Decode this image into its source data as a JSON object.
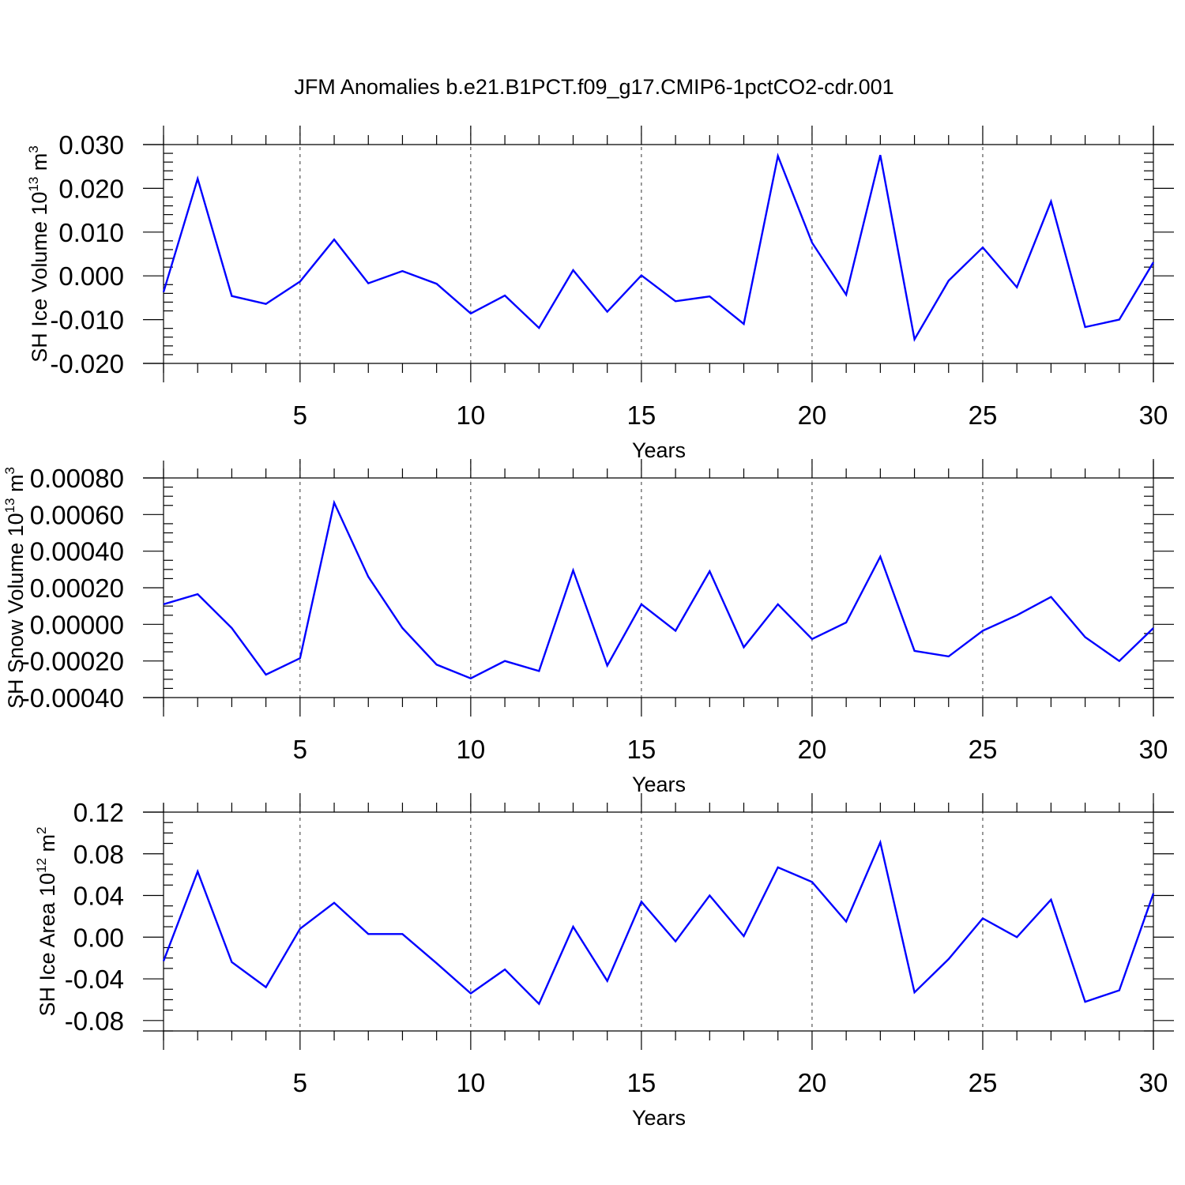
{
  "figure_title": "JFM Anomalies b.e21.B1PCT.f09_g17.CMIP6-1pctCO2-cdr.001",
  "chart_data": [
    {
      "type": "line",
      "title": "",
      "xlabel": "Years",
      "ylabel": "SH Ice Volume 10",
      "ylabel_exp": "13",
      "ylabel_unit": "m",
      "ylabel_unit_exp": "3",
      "xlim": [
        1,
        30
      ],
      "ylim": [
        -0.02,
        0.03
      ],
      "xticks": [
        5,
        10,
        15,
        20,
        25,
        30
      ],
      "xtick_labels": [
        "5",
        "10",
        "15",
        "20",
        "25",
        "30"
      ],
      "yticks": [
        -0.02,
        -0.01,
        0.0,
        0.01,
        0.02,
        0.03
      ],
      "ytick_labels": [
        "-0.020",
        "-0.010",
        "0.000",
        "0.010",
        "0.020",
        "0.030"
      ],
      "y_minor_step": 0.002,
      "grid": "vertical-dashed",
      "series": [
        {
          "name": "SH Ice Volume",
          "color": "#0000ff",
          "x": [
            1,
            2,
            3,
            4,
            5,
            6,
            7,
            8,
            9,
            10,
            11,
            12,
            13,
            14,
            15,
            16,
            17,
            18,
            19,
            20,
            21,
            22,
            23,
            24,
            25,
            26,
            27,
            28,
            29,
            30
          ],
          "values": [
            -0.0037,
            0.0222,
            -0.0046,
            -0.0064,
            -0.0013,
            0.0083,
            -0.0017,
            0.0011,
            -0.0018,
            -0.0086,
            -0.0045,
            -0.0119,
            0.0013,
            -0.0082,
            0.0001,
            -0.0058,
            -0.0047,
            -0.011,
            0.0274,
            0.0076,
            -0.0043,
            0.0276,
            -0.0145,
            -0.0011,
            0.0065,
            -0.0026,
            0.017,
            -0.0117,
            -0.01,
            0.0031
          ]
        }
      ]
    },
    {
      "type": "line",
      "title": "",
      "xlabel": "Years",
      "ylabel": "SH Snow Volume 10",
      "ylabel_exp": "13",
      "ylabel_unit": "m",
      "ylabel_unit_exp": "3",
      "xlim": [
        1,
        30
      ],
      "ylim": [
        -0.0004,
        0.0008
      ],
      "xticks": [
        5,
        10,
        15,
        20,
        25,
        30
      ],
      "xtick_labels": [
        "5",
        "10",
        "15",
        "20",
        "25",
        "30"
      ],
      "yticks": [
        -0.0004,
        -0.0002,
        0.0,
        0.0002,
        0.0004,
        0.0006,
        0.0008
      ],
      "ytick_labels": [
        "-0.00040",
        "-0.00020",
        "0.00000",
        "0.00020",
        "0.00040",
        "0.00060",
        "0.00080"
      ],
      "y_minor_step": 5e-05,
      "grid": "vertical-dashed",
      "series": [
        {
          "name": "SH Snow Volume",
          "color": "#0000ff",
          "x": [
            1,
            2,
            3,
            4,
            5,
            6,
            7,
            8,
            9,
            10,
            11,
            12,
            13,
            14,
            15,
            16,
            17,
            18,
            19,
            20,
            21,
            22,
            23,
            24,
            25,
            26,
            27,
            28,
            29,
            30
          ],
          "values": [
            0.00011,
            0.000165,
            -2e-05,
            -0.000275,
            -0.000185,
            0.000665,
            0.00026,
            -2e-05,
            -0.00022,
            -0.000295,
            -0.0002,
            -0.000255,
            0.000295,
            -0.000225,
            0.00011,
            -3.5e-05,
            0.00029,
            -0.000125,
            0.00011,
            -8e-05,
            1e-05,
            0.00037,
            -0.000145,
            -0.000175,
            -3.5e-05,
            5e-05,
            0.00015,
            -7e-05,
            -0.0002,
            -2e-05
          ]
        }
      ]
    },
    {
      "type": "line",
      "title": "",
      "xlabel": "Years",
      "ylabel": "SH Ice Area 10",
      "ylabel_exp": "12",
      "ylabel_unit": "m",
      "ylabel_unit_exp": "2",
      "xlim": [
        1,
        30
      ],
      "ylim": [
        -0.09,
        0.12
      ],
      "xticks": [
        5,
        10,
        15,
        20,
        25,
        30
      ],
      "xtick_labels": [
        "5",
        "10",
        "15",
        "20",
        "25",
        "30"
      ],
      "yticks": [
        -0.08,
        -0.04,
        0.0,
        0.04,
        0.08,
        0.12
      ],
      "ytick_labels": [
        "-0.08",
        "-0.04",
        "0.00",
        "0.04",
        "0.08",
        "0.12"
      ],
      "y_minor_step": 0.01,
      "grid": "vertical-dashed",
      "series": [
        {
          "name": "SH Ice Area",
          "color": "#0000ff",
          "x": [
            1,
            2,
            3,
            4,
            5,
            6,
            7,
            8,
            9,
            10,
            11,
            12,
            13,
            14,
            15,
            16,
            17,
            18,
            19,
            20,
            21,
            22,
            23,
            24,
            25,
            26,
            27,
            28,
            29,
            30
          ],
          "values": [
            -0.023,
            0.063,
            -0.024,
            -0.048,
            0.008,
            0.033,
            0.003,
            0.003,
            -0.025,
            -0.054,
            -0.031,
            -0.064,
            0.01,
            -0.042,
            0.034,
            -0.004,
            0.04,
            0.001,
            0.067,
            0.053,
            0.015,
            0.091,
            -0.053,
            -0.021,
            0.018,
            0.0,
            0.036,
            -0.062,
            -0.051,
            0.042
          ]
        }
      ]
    }
  ]
}
